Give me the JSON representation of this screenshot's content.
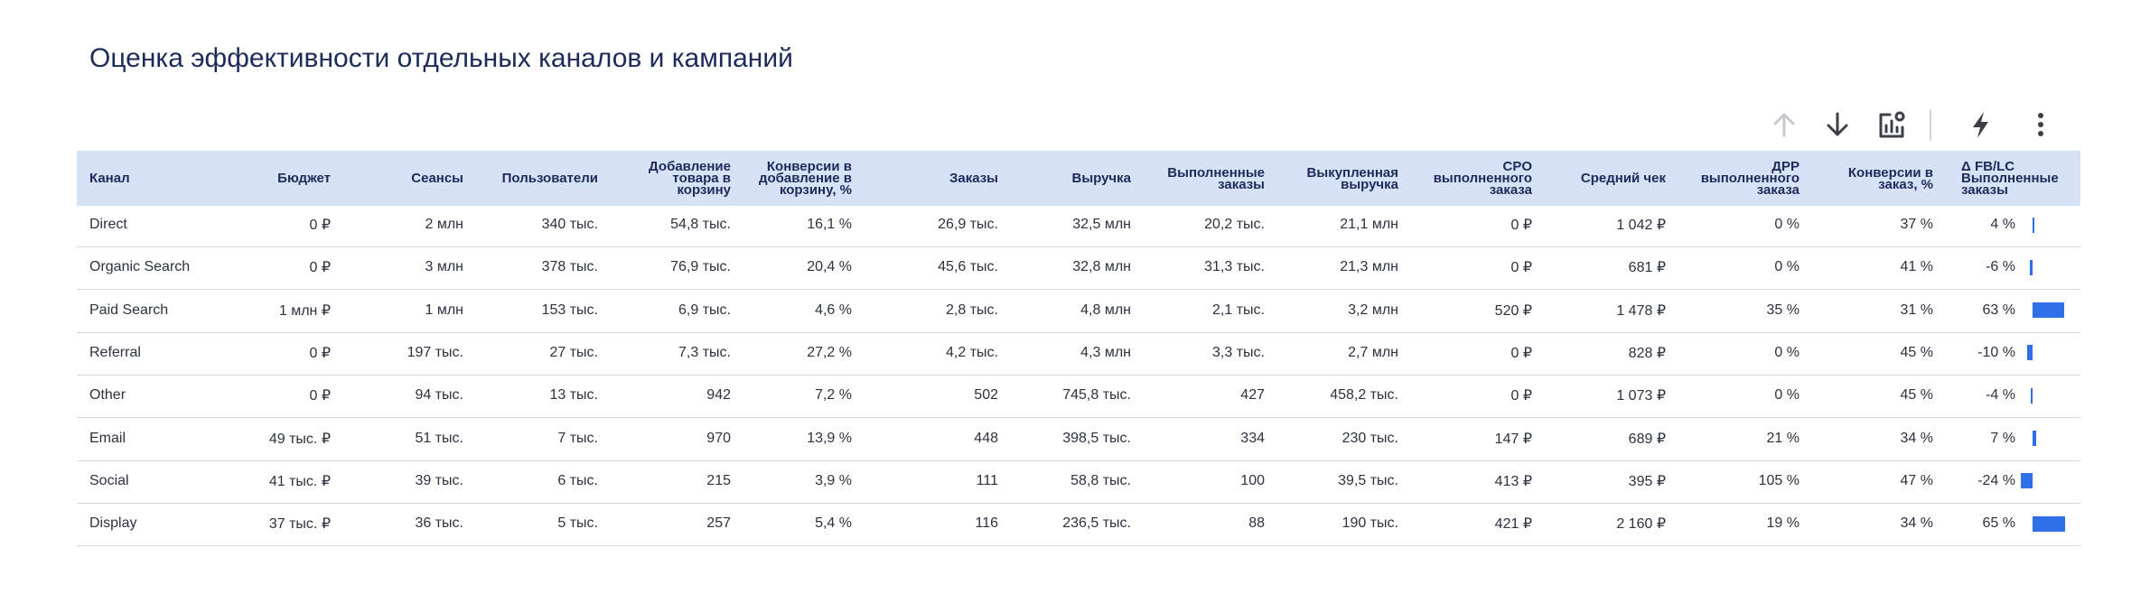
{
  "title": "Оценка эффективности отдельных каналов и кампаний",
  "table": {
    "headers": [
      "Канал",
      "Бюджет",
      "Сеансы",
      "Пользователи",
      "Добавление товара в корзину",
      "Конверсии в добавление в корзину, %",
      "Заказы",
      "Выручка",
      "Выполненные заказы",
      "Выкупленная выручка",
      "CPO выполненного заказа",
      "Средний чек",
      "ДРР выполненного заказа",
      "Конверсии в заказ, %",
      "Δ FB/LC Выполненные заказы"
    ],
    "bar_color": "#2f6fe8",
    "rows": [
      [
        "Direct",
        "0 ₽",
        "2 млн",
        "340 тыс.",
        "54,8 тыс.",
        "16,1 %",
        "26,9 тыс.",
        "32,5 млн",
        "20,2 тыс.",
        "21,1 млн",
        "0 ₽",
        "1 042 ₽",
        "0 %",
        "37 %",
        {
          "value": 4,
          "label": "4 %"
        }
      ],
      [
        "Organic Search",
        "0 ₽",
        "3 млн",
        "378 тыс.",
        "76,9 тыс.",
        "20,4 %",
        "45,6 тыс.",
        "32,8 млн",
        "31,3 тыс.",
        "21,3 млн",
        "0 ₽",
        "681 ₽",
        "0 %",
        "41 %",
        {
          "value": -6,
          "label": "-6 %"
        }
      ],
      [
        "Paid Search",
        "1 млн ₽",
        "1 млн",
        "153 тыс.",
        "6,9 тыс.",
        "4,6 %",
        "2,8 тыс.",
        "4,8 млн",
        "2,1 тыс.",
        "3,2 млн",
        "520 ₽",
        "1 478 ₽",
        "35 %",
        "31 %",
        {
          "value": 63,
          "label": "63 %"
        }
      ],
      [
        "Referral",
        "0 ₽",
        "197 тыс.",
        "27 тыс.",
        "7,3 тыс.",
        "27,2 %",
        "4,2 тыс.",
        "4,3 млн",
        "3,3 тыс.",
        "2,7 млн",
        "0 ₽",
        "828 ₽",
        "0 %",
        "45 %",
        {
          "value": -10,
          "label": "-10 %"
        }
      ],
      [
        "Other",
        "0 ₽",
        "94 тыс.",
        "13 тыс.",
        "942",
        "7,2 %",
        "502",
        "745,8 тыс.",
        "427",
        "458,2 тыс.",
        "0 ₽",
        "1 073 ₽",
        "0 %",
        "45 %",
        {
          "value": -4,
          "label": "-4 %"
        }
      ],
      [
        "Email",
        "49 тыс. ₽",
        "51 тыс.",
        "7 тыс.",
        "970",
        "13,9 %",
        "448",
        "398,5 тыс.",
        "334",
        "230 тыс.",
        "147 ₽",
        "689 ₽",
        "21 %",
        "34 %",
        {
          "value": 7,
          "label": "7 %"
        }
      ],
      [
        "Social",
        "41 тыс. ₽",
        "39 тыс.",
        "6 тыс.",
        "215",
        "3,9 %",
        "111",
        "58,8 тыс.",
        "100",
        "39,5 тыс.",
        "413 ₽",
        "395 ₽",
        "105 %",
        "47 %",
        {
          "value": -24,
          "label": "-24 %"
        }
      ],
      [
        "Display",
        "37 тыс. ₽",
        "36 тыс.",
        "5 тыс.",
        "257",
        "5,4 %",
        "116",
        "236,5 тыс.",
        "88",
        "190 тыс.",
        "421 ₽",
        "2 160 ₽",
        "19 %",
        "34 %",
        {
          "value": 65,
          "label": "65 %"
        }
      ]
    ]
  }
}
